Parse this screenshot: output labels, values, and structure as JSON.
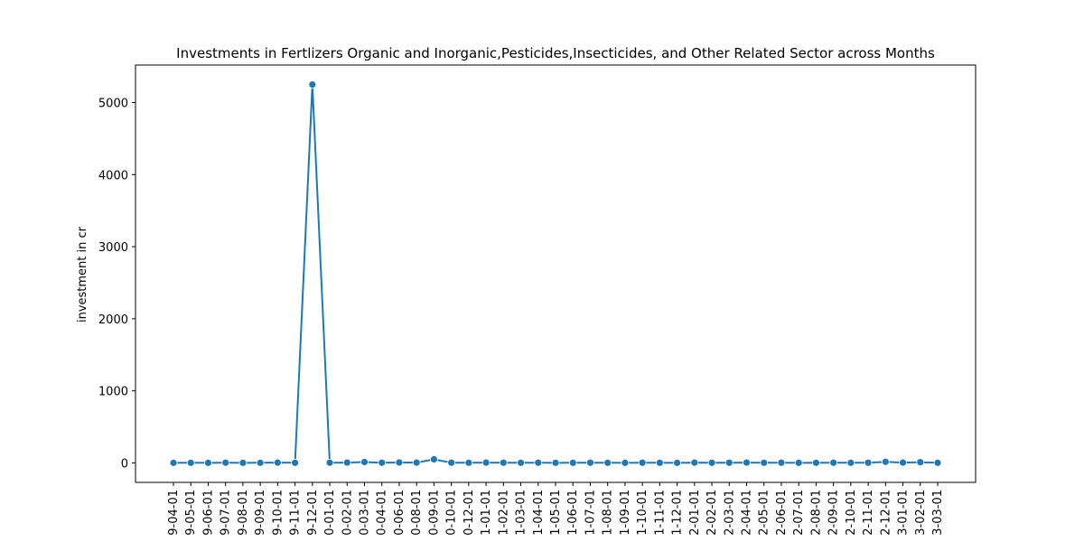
{
  "chart_data": {
    "type": "line",
    "title": "Investments in Fertlizers Organic and Inorganic,Pesticides,Insecticides, and Other Related Sector across Months",
    "xlabel": "",
    "ylabel": "investment in cr",
    "ylim": [
      -270,
      5520
    ],
    "yticks": [
      0,
      1000,
      2000,
      3000,
      4000,
      5000
    ],
    "grid": false,
    "x": [
      "9-04-01",
      "9-05-01",
      "9-06-01",
      "9-07-01",
      "9-08-01",
      "9-09-01",
      "9-10-01",
      "9-11-01",
      "9-12-01",
      "0-01-01",
      "0-02-01",
      "0-03-01",
      "0-04-01",
      "0-06-01",
      "0-08-01",
      "0-09-01",
      "0-10-01",
      "0-12-01",
      "1-01-01",
      "1-02-01",
      "1-03-01",
      "1-04-01",
      "1-05-01",
      "1-06-01",
      "1-07-01",
      "1-08-01",
      "1-09-01",
      "1-10-01",
      "1-11-01",
      "1-12-01",
      "2-01-01",
      "2-02-01",
      "2-03-01",
      "2-04-01",
      "2-05-01",
      "2-06-01",
      "2-07-01",
      "2-08-01",
      "2-09-01",
      "2-10-01",
      "2-11-01",
      "2-12-01",
      "3-01-01",
      "3-02-01",
      "3-03-01"
    ],
    "series": [
      {
        "values": [
          1,
          2,
          1,
          3,
          1,
          2,
          4,
          2,
          5250,
          3,
          5,
          12,
          3,
          6,
          4,
          50,
          3,
          2,
          4,
          3,
          2,
          3,
          1,
          2,
          3,
          2,
          1,
          3,
          2,
          1,
          4,
          2,
          3,
          5,
          2,
          3,
          1,
          2,
          3,
          2,
          3,
          15,
          4,
          10,
          2
        ],
        "color": "#1f77b4"
      }
    ]
  }
}
